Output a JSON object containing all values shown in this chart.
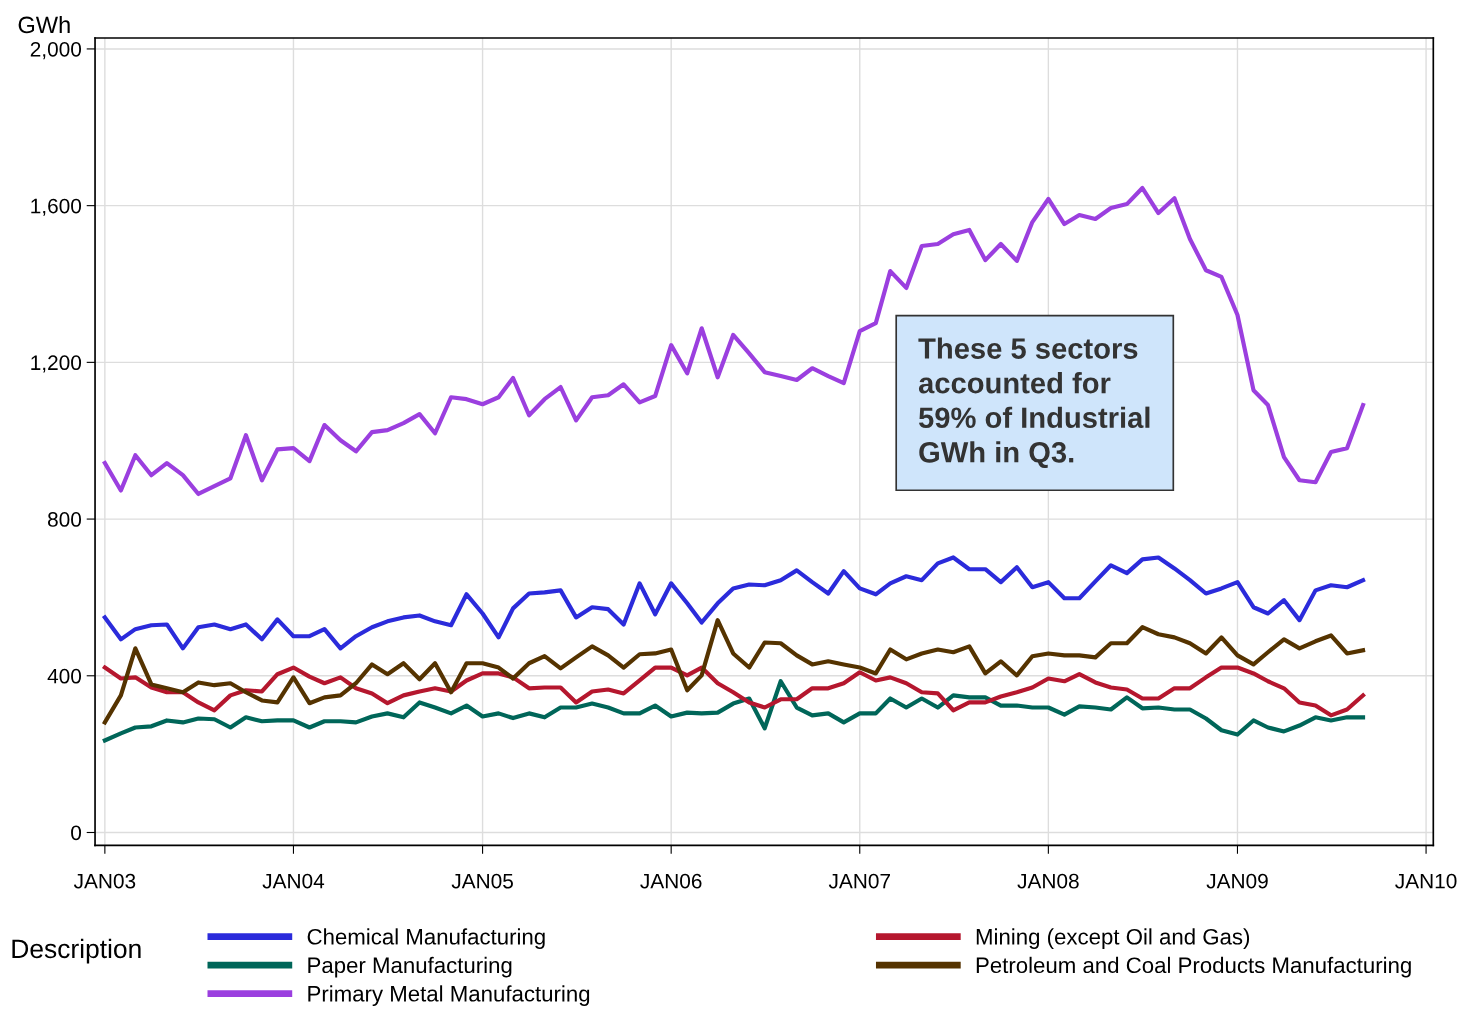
{
  "chart_data": {
    "type": "line",
    "ylabel": "GWh",
    "legend_title": "Description",
    "annotations": [
      "These 5 sectors\naccounted for\n59% of Industrial\nGWh in Q3."
    ],
    "x": [
      "2003-01",
      "2003-02",
      "2003-03",
      "2003-04",
      "2003-05",
      "2003-06",
      "2003-07",
      "2003-08",
      "2003-09",
      "2003-10",
      "2003-11",
      "2003-12",
      "2004-01",
      "2004-02",
      "2004-03",
      "2004-04",
      "2004-05",
      "2004-06",
      "2004-07",
      "2004-08",
      "2004-09",
      "2004-10",
      "2004-11",
      "2004-12",
      "2005-01",
      "2005-02",
      "2005-03",
      "2005-04",
      "2005-05",
      "2005-06",
      "2005-07",
      "2005-08",
      "2005-09",
      "2005-10",
      "2005-11",
      "2005-12",
      "2006-01",
      "2006-02",
      "2006-03",
      "2006-04",
      "2006-05",
      "2006-06",
      "2006-07",
      "2006-08",
      "2006-09",
      "2006-10",
      "2006-11",
      "2006-12",
      "2007-01",
      "2007-02",
      "2007-03",
      "2007-04",
      "2007-05",
      "2007-06",
      "2007-07",
      "2007-08",
      "2007-09",
      "2007-10",
      "2007-11",
      "2007-12",
      "2008-01",
      "2008-02",
      "2008-03",
      "2008-04",
      "2008-05",
      "2008-06",
      "2008-07",
      "2008-08",
      "2008-09",
      "2008-10",
      "2008-11",
      "2008-12",
      "2009-01",
      "2009-02",
      "2009-03",
      "2009-04",
      "2009-05",
      "2009-06",
      "2009-07",
      "2009-08",
      "2009-09"
    ],
    "series": [
      {
        "name": "Chemical Manufacturing",
        "color": "#2b2bdb",
        "values": [
          549,
          493,
          519,
          529,
          531,
          470,
          524,
          531,
          519,
          531,
          493,
          544,
          501,
          501,
          519,
          470,
          501,
          524,
          539,
          549,
          554,
          539,
          529,
          608,
          559,
          498,
          572,
          610,
          613,
          618,
          549,
          575,
          570,
          531,
          636,
          557,
          636,
          585,
          536,
          585,
          623,
          633,
          631,
          644,
          669,
          639,
          610,
          667,
          623,
          608,
          636,
          654,
          644,
          687,
          702,
          672,
          672,
          639,
          677,
          626,
          639,
          598,
          598,
          641,
          682,
          662,
          697,
          702,
          674,
          644,
          610,
          623,
          639,
          575,
          559,
          593,
          542,
          618,
          631,
          626,
          644
        ]
      },
      {
        "name": "Paper Manufacturing",
        "color": "#006659",
        "values": [
          235,
          253,
          268,
          271,
          286,
          281,
          291,
          289,
          268,
          294,
          284,
          286,
          286,
          268,
          284,
          284,
          281,
          296,
          304,
          294,
          332,
          319,
          304,
          324,
          296,
          304,
          292,
          304,
          294,
          319,
          319,
          329,
          319,
          304,
          304,
          324,
          296,
          306,
          304,
          306,
          329,
          342,
          266,
          386,
          319,
          299,
          304,
          281,
          304,
          304,
          342,
          319,
          342,
          319,
          350,
          345,
          345,
          324,
          324,
          319,
          319,
          301,
          322,
          319,
          314,
          345,
          317,
          319,
          314,
          314,
          291,
          261,
          250,
          286,
          268,
          258,
          273,
          294,
          286,
          294,
          294
        ]
      },
      {
        "name": "Primary Metal Manufacturing",
        "color": "#9b3fdf",
        "values": [
          943,
          873,
          963,
          912,
          943,
          912,
          864,
          884,
          904,
          1014,
          899,
          978,
          981,
          948,
          1040,
          1001,
          973,
          1022,
          1027,
          1045,
          1068,
          1019,
          1111,
          1106,
          1093,
          1111,
          1160,
          1065,
          1106,
          1137,
          1052,
          1111,
          1116,
          1144,
          1098,
          1114,
          1244,
          1172,
          1287,
          1162,
          1270,
          1223,
          1175,
          1165,
          1155,
          1185,
          1165,
          1147,
          1280,
          1300,
          1433,
          1390,
          1497,
          1502,
          1527,
          1538,
          1461,
          1502,
          1459,
          1558,
          1617,
          1553,
          1576,
          1566,
          1594,
          1604,
          1645,
          1581,
          1619,
          1515,
          1435,
          1418,
          1321,
          1129,
          1091,
          958,
          899,
          894,
          971,
          981,
          1091
        ]
      },
      {
        "name": "Mining (except Oil and Gas)",
        "color": "#b5172e",
        "values": [
          421,
          393,
          396,
          370,
          358,
          358,
          332,
          312,
          350,
          363,
          360,
          404,
          421,
          398,
          381,
          396,
          368,
          355,
          330,
          350,
          360,
          368,
          360,
          388,
          406,
          406,
          396,
          368,
          370,
          370,
          332,
          360,
          365,
          355,
          388,
          421,
          421,
          401,
          421,
          381,
          358,
          332,
          319,
          340,
          340,
          368,
          368,
          381,
          409,
          388,
          396,
          381,
          358,
          355,
          312,
          332,
          332,
          347,
          358,
          370,
          393,
          386,
          404,
          383,
          370,
          365,
          342,
          342,
          368,
          368,
          396,
          421,
          421,
          406,
          386,
          368,
          332,
          324,
          299,
          314,
          350
        ]
      },
      {
        "name": "Petroleum and Coal Products Manufacturing",
        "color": "#553300",
        "values": [
          281,
          350,
          470,
          378,
          368,
          358,
          383,
          376,
          381,
          358,
          337,
          332,
          396,
          330,
          345,
          350,
          381,
          429,
          404,
          432,
          391,
          432,
          358,
          432,
          432,
          421,
          393,
          432,
          450,
          419,
          447,
          475,
          452,
          421,
          455,
          457,
          467,
          363,
          401,
          542,
          457,
          421,
          485,
          483,
          452,
          429,
          437,
          429,
          421,
          406,
          467,
          442,
          457,
          467,
          460,
          475,
          406,
          437,
          401,
          450,
          457,
          452,
          452,
          447,
          483,
          483,
          524,
          506,
          498,
          483,
          457,
          498,
          452,
          429,
          460,
          493,
          470,
          488,
          503,
          457,
          465
        ]
      }
    ],
    "xlim": [
      "2002-12-13",
      "2010-01-15"
    ],
    "xticks": [
      {
        "value": "2003-01",
        "label": "JAN03"
      },
      {
        "value": "2004-01",
        "label": "JAN04"
      },
      {
        "value": "2005-01",
        "label": "JAN05"
      },
      {
        "value": "2006-01",
        "label": "JAN06"
      },
      {
        "value": "2007-01",
        "label": "JAN07"
      },
      {
        "value": "2008-01",
        "label": "JAN08"
      },
      {
        "value": "2009-01",
        "label": "JAN09"
      },
      {
        "value": "2010-01",
        "label": "JAN10"
      }
    ],
    "ylim": [
      -33,
      2028
    ],
    "yticks": [
      0,
      400,
      800,
      {
        "value": 1200,
        "label": "1,200"
      },
      {
        "value": 1600,
        "label": "1,600"
      },
      {
        "value": 2000,
        "label": "2,000"
      }
    ],
    "grid": true,
    "legend": "bottom",
    "marker": "none",
    "line_style": "solid"
  }
}
